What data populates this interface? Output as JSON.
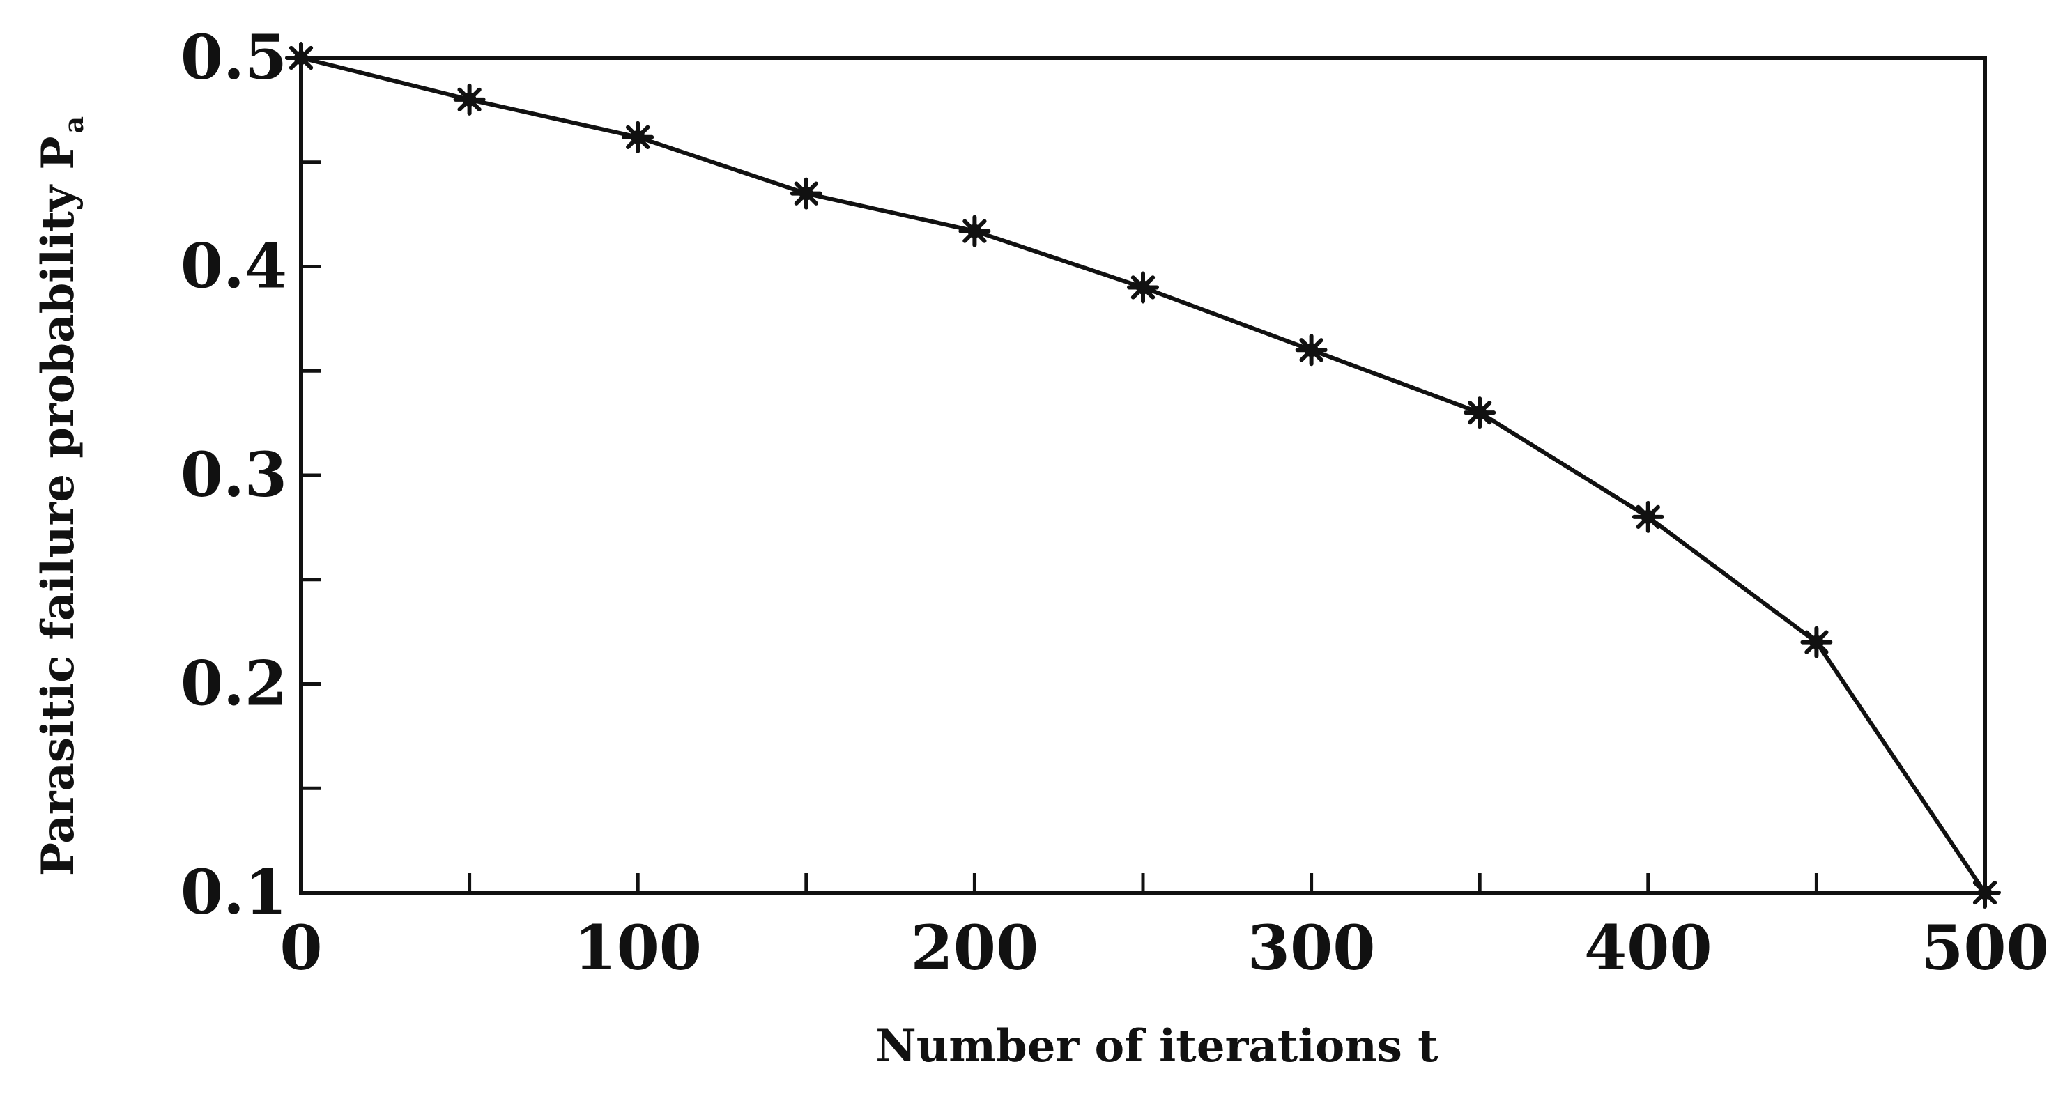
{
  "chart_data": {
    "type": "line",
    "title": "",
    "xlabel": "Number of iterations t",
    "ylabel_main": "Parasitic failure probability P",
    "ylabel_subscript": "a",
    "xlim": [
      0,
      500
    ],
    "ylim": [
      0.1,
      0.5
    ],
    "x_ticks": [
      0,
      100,
      200,
      300,
      400,
      500
    ],
    "x_tick_labels": [
      "0",
      "100",
      "200",
      "300",
      "400",
      "500"
    ],
    "y_ticks": [
      0.1,
      0.2,
      0.3,
      0.4,
      0.5
    ],
    "y_tick_labels": [
      "0.1",
      "0.2",
      "0.3",
      "0.4",
      "0.5"
    ],
    "grid": false,
    "legend": "none",
    "series": [
      {
        "marker": "star",
        "color": "#111111",
        "x": [
          0,
          50,
          100,
          150,
          200,
          250,
          300,
          350,
          400,
          450,
          500
        ],
        "y": [
          0.5,
          0.48,
          0.462,
          0.435,
          0.417,
          0.39,
          0.36,
          0.33,
          0.28,
          0.22,
          0.1
        ]
      }
    ]
  }
}
